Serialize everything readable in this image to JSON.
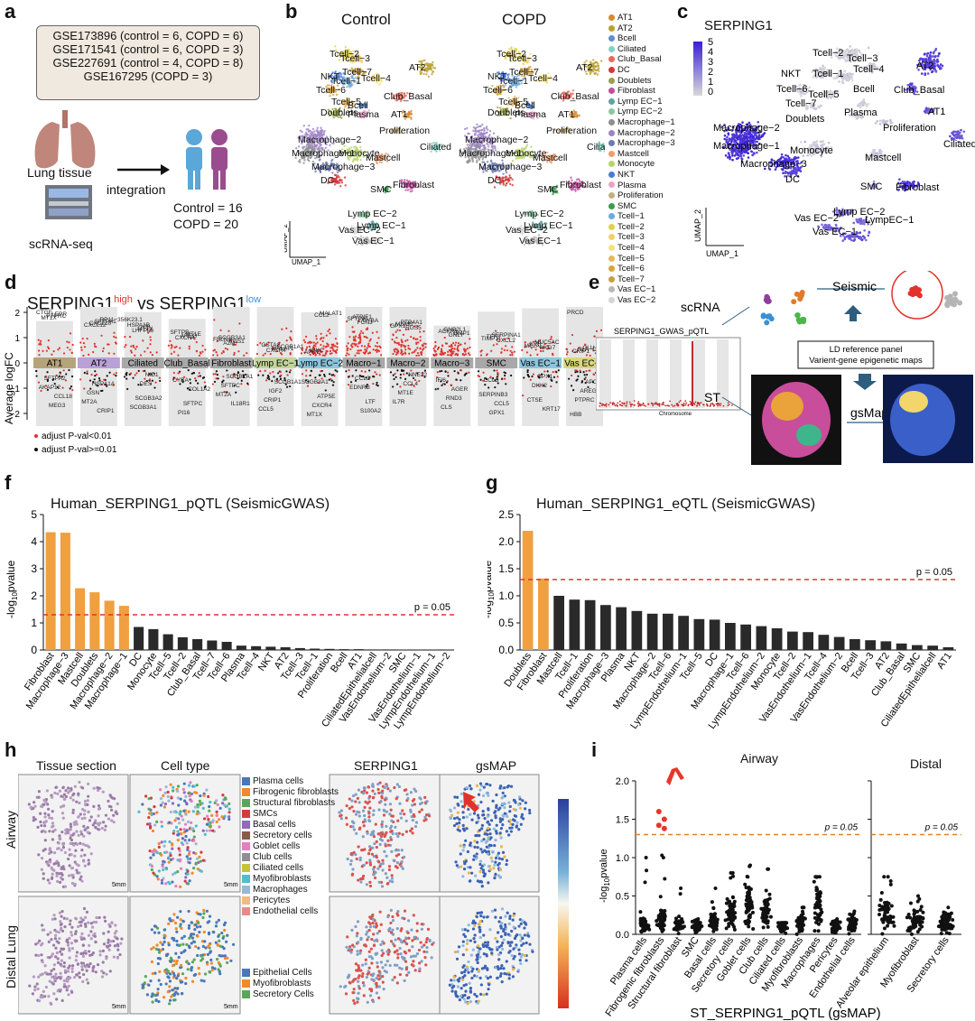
{
  "panel_labels": {
    "a": "a",
    "b": "b",
    "c": "c",
    "d": "d",
    "e": "e",
    "f": "f",
    "g": "g",
    "h": "h",
    "i": "i"
  },
  "a": {
    "datasets": [
      "GSE173896 (control = 6, COPD = 6)",
      "GSE171541 (control = 6, COPD = 3)",
      "GSE227691 (control = 4, COPD = 8)",
      "GSE167295 (COPD = 3)"
    ],
    "lung_label": "Lung tissue",
    "seq_label": "scRNA-seq",
    "integration": "integration",
    "control": "Control = 16",
    "copd": "COPD = 20"
  },
  "b": {
    "title_control": "Control",
    "title_copd": "COPD",
    "cluster_labels": [
      "Tcell−2",
      "Tcell−3",
      "Tcell−7",
      "NKT",
      "Tcell−1",
      "Tcell−4",
      "AT2",
      "Tcell−6",
      "Tcell−5",
      "Bcell",
      "Club_Basal",
      "Doublets",
      "Plasma",
      "AT1",
      "Macrophage−2",
      "Proliferation",
      "Macrophage−1",
      "Ciliated",
      "Monocyte",
      "Mastcell",
      "Macrophage−3",
      "DC",
      "SMC",
      "Fibroblast",
      "Lymp EC−2",
      "Lymp EC−1",
      "Vas EC−2",
      "Vas EC−1"
    ],
    "umap_x": "UMAP_1",
    "umap_y": "UMAP_2",
    "legend": [
      {
        "label": "AT1",
        "color": "#d68a2e"
      },
      {
        "label": "AT2",
        "color": "#b9a12f"
      },
      {
        "label": "Bcell",
        "color": "#5b8fd0"
      },
      {
        "label": "Ciliated",
        "color": "#7fd3c6"
      },
      {
        "label": "Club_Basal",
        "color": "#e56b5c"
      },
      {
        "label": "DC",
        "color": "#d13a3a"
      },
      {
        "label": "Doublets",
        "color": "#9aa04a"
      },
      {
        "label": "Fibroblast",
        "color": "#c04f9f"
      },
      {
        "label": "Lymp EC−1",
        "color": "#5fa3a0"
      },
      {
        "label": "Lymp EC−2",
        "color": "#8cc7a0"
      },
      {
        "label": "Macrophage−1",
        "color": "#8e8e8e"
      },
      {
        "label": "Macrophage−2",
        "color": "#9d83c7"
      },
      {
        "label": "Macrophage−3",
        "color": "#6d79b4"
      },
      {
        "label": "Mastcell",
        "color": "#ef9d6b"
      },
      {
        "label": "Monocyte",
        "color": "#b9d46a"
      },
      {
        "label": "NKT",
        "color": "#4b7bd4"
      },
      {
        "label": "Plasma",
        "color": "#e9a3c9"
      },
      {
        "label": "Proliferation",
        "color": "#c3b07c"
      },
      {
        "label": "SMC",
        "color": "#3e9a4f"
      },
      {
        "label": "Tcell−1",
        "color": "#6fa9de"
      },
      {
        "label": "Tcell−2",
        "color": "#e1cf4b"
      },
      {
        "label": "Tcell−3",
        "color": "#f1d16c"
      },
      {
        "label": "Tcell−4",
        "color": "#f3e27f"
      },
      {
        "label": "Tcell−5",
        "color": "#e5b85c"
      },
      {
        "label": "Tcell−6",
        "color": "#d9a43c"
      },
      {
        "label": "Tcell−7",
        "color": "#c99d45"
      },
      {
        "label": "Vas EC−1",
        "color": "#b9b9b9"
      },
      {
        "label": "Vas EC−2",
        "color": "#d5d5d5"
      }
    ]
  },
  "c": {
    "title": "SERPING1",
    "scale": [
      "5",
      "4",
      "3",
      "2",
      "1",
      "0"
    ],
    "cluster_labels": [
      "Tcell−2",
      "Tcell−3",
      "NKT",
      "Tcell−1",
      "Tcell−4",
      "AT2",
      "Tcell−6",
      "Tcell−5",
      "Bcell",
      "Club_Basal",
      "Tcell−7",
      "Plasma",
      "AT1",
      "Doublets",
      "Proliferation",
      "Macrophage−2",
      "Ciliated",
      "Macrophage−1",
      "Monocyte",
      "Mastcell",
      "Macrophage−3",
      "DC",
      "SMC",
      "Fibroblast",
      "Lymp EC−2",
      "Vas EC−2",
      "LympEC−1",
      "Vas EC−1"
    ],
    "umap_x": "UMAP_1",
    "umap_y": "UMAP_2"
  },
  "d": {
    "title_main": "SERPING1",
    "title_high": "high",
    "title_vs": " vs SERPING1",
    "title_low": "low",
    "ylabel": "Average logFC",
    "legend_red": "adjust P-val<0.01",
    "legend_black": "adjust P-val>=0.01",
    "yticks": [
      "2",
      "1",
      "0",
      "−1",
      "−2"
    ],
    "clusters": [
      {
        "label": "AT1",
        "color": "#b5a37a"
      },
      {
        "label": "AT2",
        "color": "#b9a0d6"
      },
      {
        "label": "Ciliated",
        "color": "#a8a8a8"
      },
      {
        "label": "Club_Basal",
        "color": "#a8a8a8"
      },
      {
        "label": "Fibroblast",
        "color": "#a8a8a8"
      },
      {
        "label": "Lymp EC−1",
        "color": "#c3d49a"
      },
      {
        "label": "Lymp EC−2",
        "color": "#8ec4dc"
      },
      {
        "label": "Macro−1",
        "color": "#a8a8a8"
      },
      {
        "label": "Macro−2",
        "color": "#a8a8a8"
      },
      {
        "label": "Macro−3",
        "color": "#a8a8a8"
      },
      {
        "label": "SMC",
        "color": "#a8a8a8"
      },
      {
        "label": "Vas EC−1",
        "color": "#8ec4dc"
      },
      {
        "label": "Vas EC−2",
        "color": "#d9d77c"
      }
    ],
    "gene_labels": [
      "CTGF",
      "HSPA1A",
      "HSPA1B",
      "SFTPC",
      "SCGB3A1",
      "SCGB1A1",
      "IGKC",
      "LTF",
      "PTP4A1",
      "IFI6",
      "SERPINA1",
      "CTSE",
      "CLU",
      "SFTPA2",
      "RP11−356K23.1",
      "SCGB3A2",
      "SFTPB",
      "SCGB1A1",
      "GSTA2",
      "ATP5E",
      "ATPIF1",
      "NNE32",
      "GNB2L1",
      "SERPINB3",
      "MUC5AC",
      "HBB",
      "LEPR",
      "GSN",
      "C3",
      "PI16",
      "FBLN1",
      "IGF2",
      "APOD",
      "S100A2",
      "MSMB",
      "AGER",
      "TFF3",
      "KRT17",
      "HLA−DRB5",
      "AKAP12",
      "SFTPA1",
      "SCGB3A1",
      "MT1E",
      "SFTPC",
      "SCGB1A1",
      "CXCR4",
      "SFTPA1",
      "CCL4",
      "ACKR1",
      "CCL5",
      "IL7R",
      "APOE",
      "PTPRC",
      "MT2A",
      "MT1X",
      "CYBA",
      "RGS1",
      "CRIP1",
      "MALAT1",
      "CCL3",
      "GPX1",
      "RND3",
      "TIMP1",
      "GPX1",
      "CRIP1",
      "CCL18",
      "CXCL10",
      "NID1",
      "AREG",
      "MT2A",
      "MALAT1",
      "MT1X",
      "CYBA",
      "MT1E",
      "DMP1",
      "GPX1",
      "MT2A",
      "AREG",
      "MT1X",
      "CRIP1",
      "LHFPL6",
      "COL1A2",
      "A2M",
      "CCL5",
      "CCL2",
      "EDNRB",
      "RGS5",
      "CLS",
      "CXCL2",
      "DKK2",
      "PRCD",
      "MEG3",
      "CXCL12",
      "DES",
      "CXCR4",
      "IL18R1",
      "CXCR4",
      "SCGB3A1",
      "FCN3",
      "IL7R",
      "GNLY",
      "CCL5",
      "NKG7",
      "PTPRC"
    ]
  },
  "e": {
    "scrna": "scRNA",
    "seismic": "Seismic",
    "gwas_title": "SERPING1_GWAS_pQTL",
    "xaxis": "Chromosome",
    "ld1": "LD reference panel",
    "ld2": "Varient-gene epigenetic maps",
    "st": "ST",
    "gsmap": "gsMap"
  },
  "f": {
    "chart_data": {
      "type": "bar",
      "title": "Human_SERPING1_pQTL (SeismicGWAS)",
      "ylabel": "-log10pvalue",
      "ylim": [
        0,
        5
      ],
      "yticks": [
        "0",
        "1",
        "2",
        "3",
        "4",
        "5"
      ],
      "threshold": 1.3,
      "threshold_label": "p = 0.05",
      "categories": [
        "Fibroblast",
        "Macrophage−3",
        "Mastcell",
        "Doublets",
        "Macrophage−2",
        "Macrophage−1",
        "DC",
        "Monocyte",
        "Tcell−5",
        "Tcell−2",
        "Club_Basal",
        "Tcell−7",
        "Tcell−6",
        "Plasma",
        "Tcell−4",
        "NKT",
        "AT2",
        "Tcell−3",
        "Tcell−1",
        "Proliferation",
        "Bcell",
        "AT1",
        "CiliatedEpithelialcell",
        "VasEndothelium−2",
        "SMC",
        "VasEndothelium−1",
        "LympEndothelium−1",
        "LympEndothelium−2"
      ],
      "values": [
        4.35,
        4.33,
        2.28,
        2.13,
        1.82,
        1.63,
        0.85,
        0.77,
        0.58,
        0.47,
        0.4,
        0.35,
        0.3,
        0.16,
        0.14,
        0.12,
        0.1,
        0.07,
        0.05,
        0.04,
        0.03,
        0.03,
        0.02,
        0.02,
        0.01,
        0.01,
        0.01,
        0.01
      ],
      "highlight_count": 6,
      "highlight_color": "#f0a040",
      "base_color": "#2a2a2a"
    }
  },
  "g": {
    "chart_data": {
      "type": "bar",
      "title": "Human_SERPING1_eQTL (SeismicGWAS)",
      "ylabel": "-log10pvalue",
      "ylim": [
        0,
        2.5
      ],
      "yticks": [
        "0.0",
        "0.5",
        "1.0",
        "1.5",
        "2.0",
        "2.5"
      ],
      "threshold": 1.3,
      "threshold_label": "p = 0.05",
      "categories": [
        "Doublets",
        "Fibroblast",
        "Mastcell",
        "Tcell−1",
        "Proliferation",
        "Macrophage−3",
        "Plasma",
        "NKT",
        "Macrophage−2",
        "Tcell−6",
        "LympEndothelium−1",
        "Tcell−5",
        "DC",
        "Macrophage−1",
        "Tcell−6",
        "LympEndothelium−2",
        "Monocyte",
        "Tcell−2",
        "VasEndothelium−1",
        "Tcell−4",
        "VasEndothelium−2",
        "Bcell",
        "Tcell−3",
        "AT2",
        "Club_Basal",
        "SMC",
        "CiliatedEpithelialcell",
        "AT1"
      ],
      "values": [
        2.2,
        1.32,
        1.0,
        0.93,
        0.92,
        0.83,
        0.79,
        0.72,
        0.67,
        0.67,
        0.63,
        0.57,
        0.56,
        0.5,
        0.47,
        0.44,
        0.4,
        0.34,
        0.33,
        0.28,
        0.24,
        0.2,
        0.18,
        0.16,
        0.12,
        0.09,
        0.08,
        0.05
      ],
      "highlight_count": 2,
      "highlight_color": "#f0a040",
      "base_color": "#2a2a2a"
    }
  },
  "h": {
    "col_titles": [
      "Tissue section",
      "Cell type",
      "SERPING1",
      "gsMAP"
    ],
    "row_labels": [
      "Airway",
      "Distal Lung"
    ],
    "scalebar": "5mm",
    "legend_airway": [
      {
        "label": "Plasma cells",
        "color": "#4878b8"
      },
      {
        "label": "Fibrogenic fibroblasts",
        "color": "#f08a2c"
      },
      {
        "label": "Structural fibroblasts",
        "color": "#57a957"
      },
      {
        "label": "SMCs",
        "color": "#d23c3c"
      },
      {
        "label": "Basal cells",
        "color": "#9068c0"
      },
      {
        "label": "Secretory cells",
        "color": "#8c5a4c"
      },
      {
        "label": "Goblet cells",
        "color": "#e57fc0"
      },
      {
        "label": "Club cells",
        "color": "#8f8f8f"
      },
      {
        "label": "Ciliated cells",
        "color": "#c3c43a"
      },
      {
        "label": "Myofibroblasts",
        "color": "#4ebecd"
      },
      {
        "label": "Macrophages",
        "color": "#9bb7d6"
      },
      {
        "label": "Pericytes",
        "color": "#f3b985"
      },
      {
        "label": "Endothelial cells",
        "color": "#e88a8a"
      }
    ],
    "legend_distal": [
      {
        "label": "Epithelial Cells",
        "color": "#4878b8"
      },
      {
        "label": "Myofibroblasts",
        "color": "#f08a2c"
      },
      {
        "label": "Secretory Cells",
        "color": "#57a957"
      }
    ]
  },
  "i": {
    "chart_data": {
      "type": "scatter",
      "title_airway": "Airway",
      "title_distal": "Distal",
      "ylabel": "-log10pvalue",
      "xlabel": "ST_SERPING1_pQTL (gsMAP)",
      "ylim": [
        0,
        2.0
      ],
      "yticks": [
        "0.0",
        "0.5",
        "1.0",
        "1.5",
        "2.0"
      ],
      "threshold": 1.3,
      "threshold_label": "p = 0.05",
      "airway_categories": [
        "Plasma cells",
        "Fibrogenic fibroblasts",
        "Structural fibroblast",
        "SMC",
        "Basal cells",
        "Secretory cells",
        "Goblet cells",
        "Club cells",
        "Ciliated cells",
        "Myofibroblasts",
        "Macrophages",
        "Pericytes",
        "Endothelial cells"
      ],
      "airway_max": [
        1.0,
        1.6,
        0.6,
        0.2,
        0.6,
        0.8,
        0.9,
        0.85,
        0.15,
        0.35,
        0.75,
        0.2,
        0.3
      ],
      "airway_median": [
        0.12,
        0.18,
        0.12,
        0.1,
        0.15,
        0.25,
        0.35,
        0.3,
        0.1,
        0.15,
        0.4,
        0.1,
        0.15
      ],
      "distal_categories": [
        "Alveolar epithelium",
        "Myofibroblast",
        "Secretory cells"
      ],
      "distal_max": [
        0.75,
        0.5,
        0.35
      ],
      "distal_median": [
        0.25,
        0.18,
        0.15
      ],
      "significant_values": [
        1.6,
        1.5,
        1.42,
        1.38
      ]
    }
  }
}
